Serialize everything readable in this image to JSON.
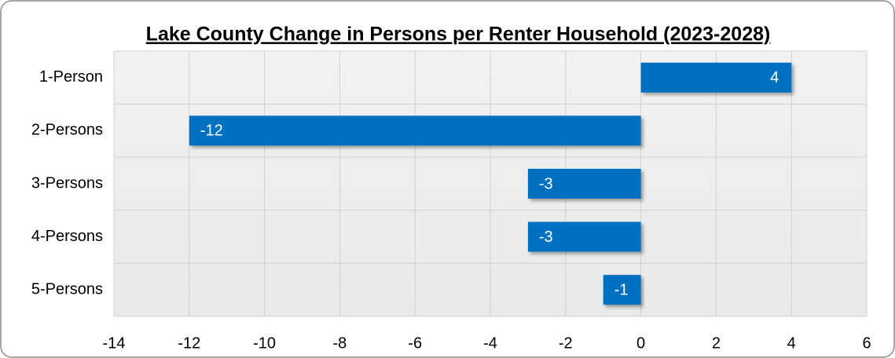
{
  "chart_data": {
    "type": "bar",
    "orientation": "horizontal",
    "title": "Lake County Change in Persons per Renter Household (2023-2028)",
    "categories": [
      "1-Person",
      "2-Persons",
      "3-Persons",
      "4-Persons",
      "5-Persons"
    ],
    "values": [
      4,
      -12,
      -3,
      -3,
      -1
    ],
    "color": "#0070c0",
    "xlim": [
      -14,
      6
    ],
    "xticks": [
      -14,
      -12,
      -10,
      -8,
      -6,
      -4,
      -2,
      0,
      2,
      4,
      6
    ],
    "grid": true
  }
}
